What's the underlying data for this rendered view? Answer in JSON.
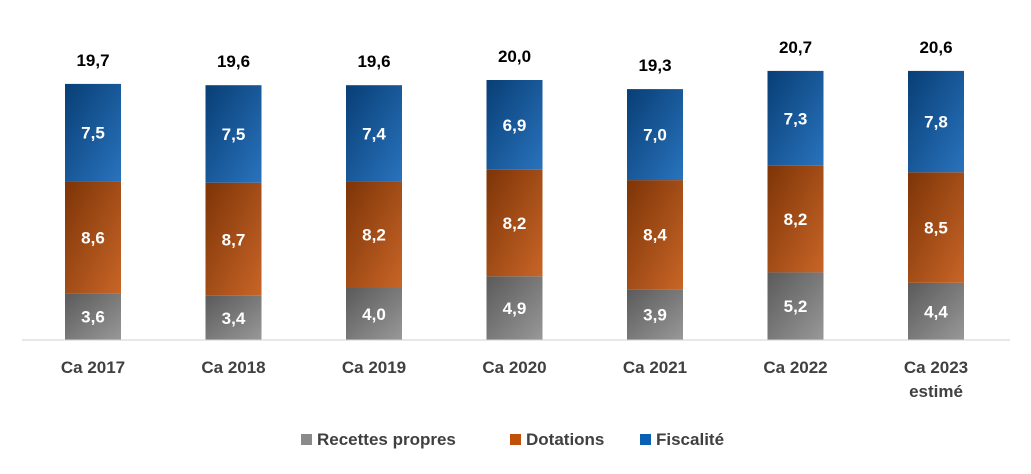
{
  "chart_data": {
    "type": "bar",
    "stacked": true,
    "title": "",
    "xlabel": "",
    "ylabel": "",
    "ylim": [
      0,
      22
    ],
    "grid": false,
    "legend_position": "bottom",
    "categories": [
      [
        "Ca 2017"
      ],
      [
        "Ca 2018"
      ],
      [
        "Ca 2019"
      ],
      [
        "Ca 2020"
      ],
      [
        "Ca 2021"
      ],
      [
        "Ca 2022"
      ],
      [
        "Ca 2023",
        "estimé"
      ]
    ],
    "series": [
      {
        "name": "Recettes propres",
        "color": "#8a8a8a",
        "values": [
          3.6,
          3.4,
          4.0,
          4.9,
          3.9,
          5.2,
          4.4
        ],
        "labels": [
          "3,6",
          "3,4",
          "4,0",
          "4,9",
          "3,9",
          "5,2",
          "4,4"
        ]
      },
      {
        "name": "Dotations",
        "color": "#c0500a",
        "values": [
          8.6,
          8.7,
          8.2,
          8.2,
          8.4,
          8.2,
          8.5
        ],
        "labels": [
          "8,6",
          "8,7",
          "8,2",
          "8,2",
          "8,4",
          "8,2",
          "8,5"
        ]
      },
      {
        "name": "Fiscalité",
        "color": "#0c60b4",
        "values": [
          7.5,
          7.5,
          7.4,
          6.9,
          7.0,
          7.3,
          7.8
        ],
        "labels": [
          "7,5",
          "7,5",
          "7,4",
          "6,9",
          "7,0",
          "7,3",
          "7,8"
        ]
      }
    ],
    "totals": [
      19.7,
      19.6,
      19.6,
      20.0,
      19.3,
      20.7,
      20.6
    ],
    "total_labels": [
      "19,7",
      "19,6",
      "19,6",
      "20,0",
      "19,3",
      "20,7",
      "20,6"
    ]
  }
}
